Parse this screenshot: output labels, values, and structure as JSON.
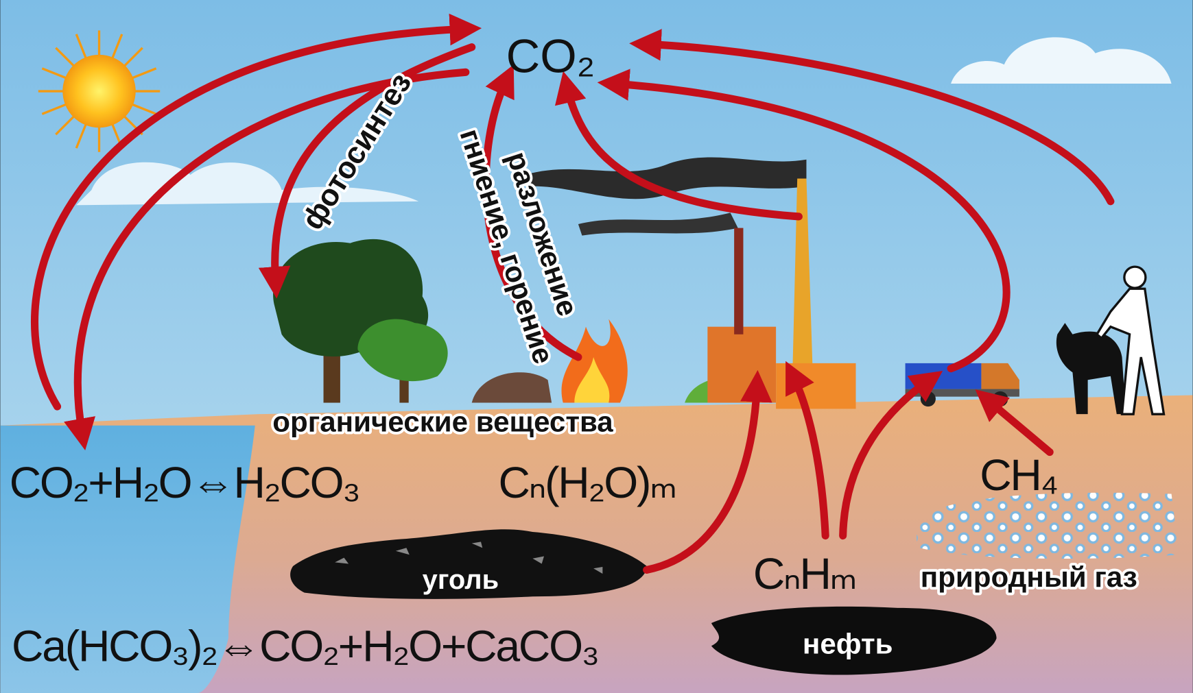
{
  "diagram": {
    "center": "CO₂",
    "process_labels": {
      "photosynthesis": "фотосинтез",
      "decay": "гниение, горение",
      "decomposition": "разложение"
    },
    "labels": {
      "organic": "органические вещества",
      "coal": "уголь",
      "gas": "природный газ",
      "oil": "нефть"
    },
    "formulas": {
      "carbonic": "CO₂+H₂O⇔H₂CO₃",
      "carbohydrate": "Cₙ(H₂O)ₘ",
      "methane": "CH₄",
      "hydrocarbon": "CₙHₘ",
      "bicarbonate": "Ca(HCO₃)₂⇔CO₂+H₂O+CaCO₃"
    }
  }
}
